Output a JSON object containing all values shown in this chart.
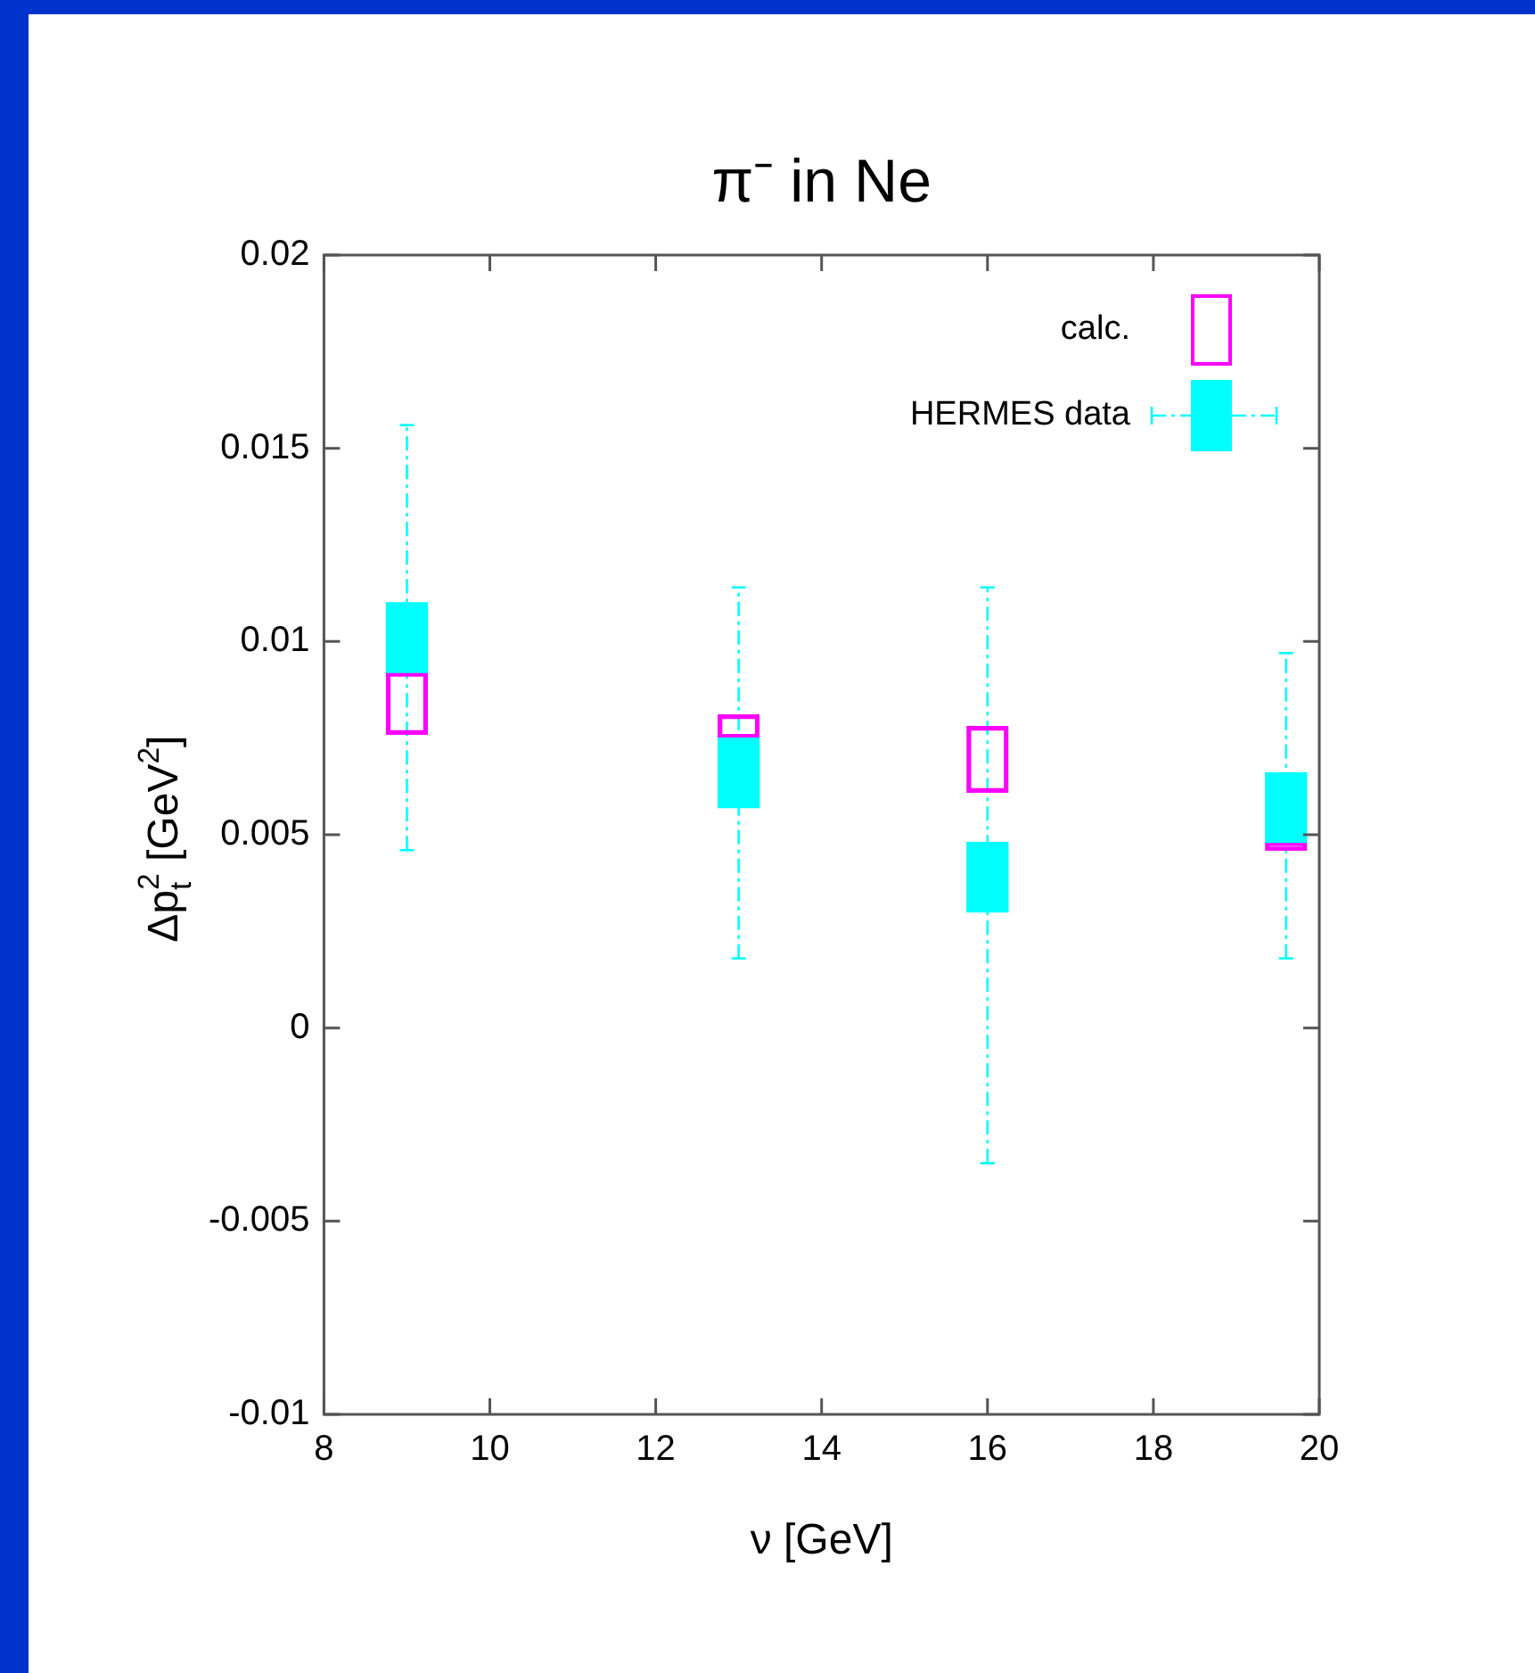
{
  "chart_data": {
    "type": "bar",
    "title": "π⁻ in Ne",
    "xlabel": "ν [GeV]",
    "ylabel": "Δp$_{t}$$^{2}$ [GeV$^{2}$]",
    "x": [
      9,
      13,
      16,
      19.6
    ],
    "series": [
      {
        "name": "calc.",
        "color": "#ff00ff",
        "base": [
          0.0076,
          0.0075,
          0.0061,
          0.0046
        ],
        "values": [
          0.0016,
          0.0006,
          0.0017,
          0.0002
        ]
      },
      {
        "name": "HERMES data",
        "color": "#00ffff",
        "base": [
          0.0092,
          0.0057,
          0.003,
          0.0048
        ],
        "values": [
          0.0018,
          0.0018,
          0.0018,
          0.0018
        ],
        "errors": [
          [
            0.0046,
            0.0156
          ],
          [
            0.0018,
            0.0114
          ],
          [
            -0.0035,
            0.0114
          ],
          [
            0.0018,
            0.0097
          ]
        ]
      }
    ],
    "xlim": [
      8,
      20
    ],
    "xticks": [
      8,
      10,
      12,
      14,
      16,
      18,
      20
    ],
    "ylim": [
      -0.01,
      0.02
    ],
    "yticks": [
      -0.01,
      -0.005,
      0,
      0.005,
      0.01,
      0.015,
      0.02
    ],
    "grid": false,
    "legend": "top right"
  }
}
